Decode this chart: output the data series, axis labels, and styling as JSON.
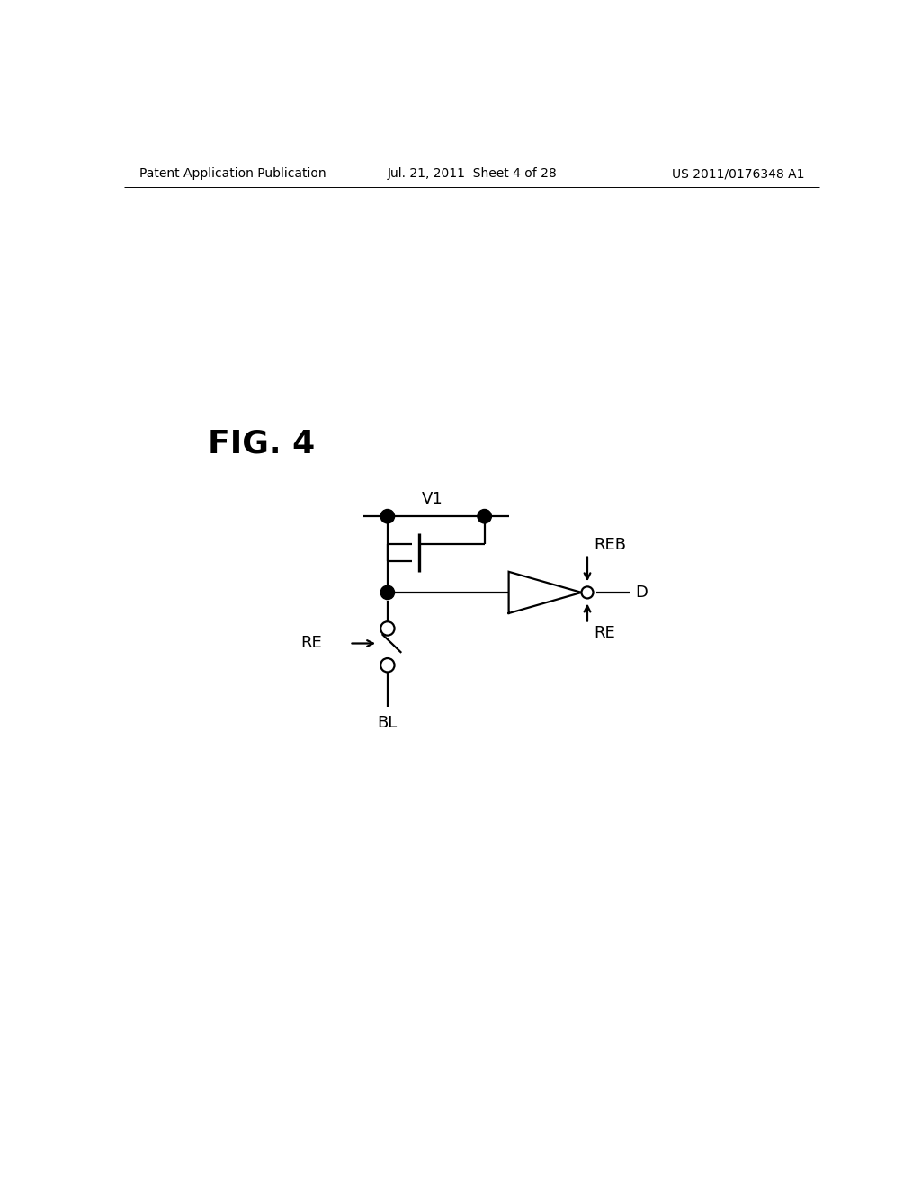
{
  "bg_color": "#ffffff",
  "line_color": "#000000",
  "title": "FIG. 4",
  "header_left": "Patent Application Publication",
  "header_center": "Jul. 21, 2011  Sheet 4 of 28",
  "header_right": "US 2011/0176348 A1",
  "header_fontsize": 10,
  "title_fontsize": 26,
  "label_fontsize": 13
}
